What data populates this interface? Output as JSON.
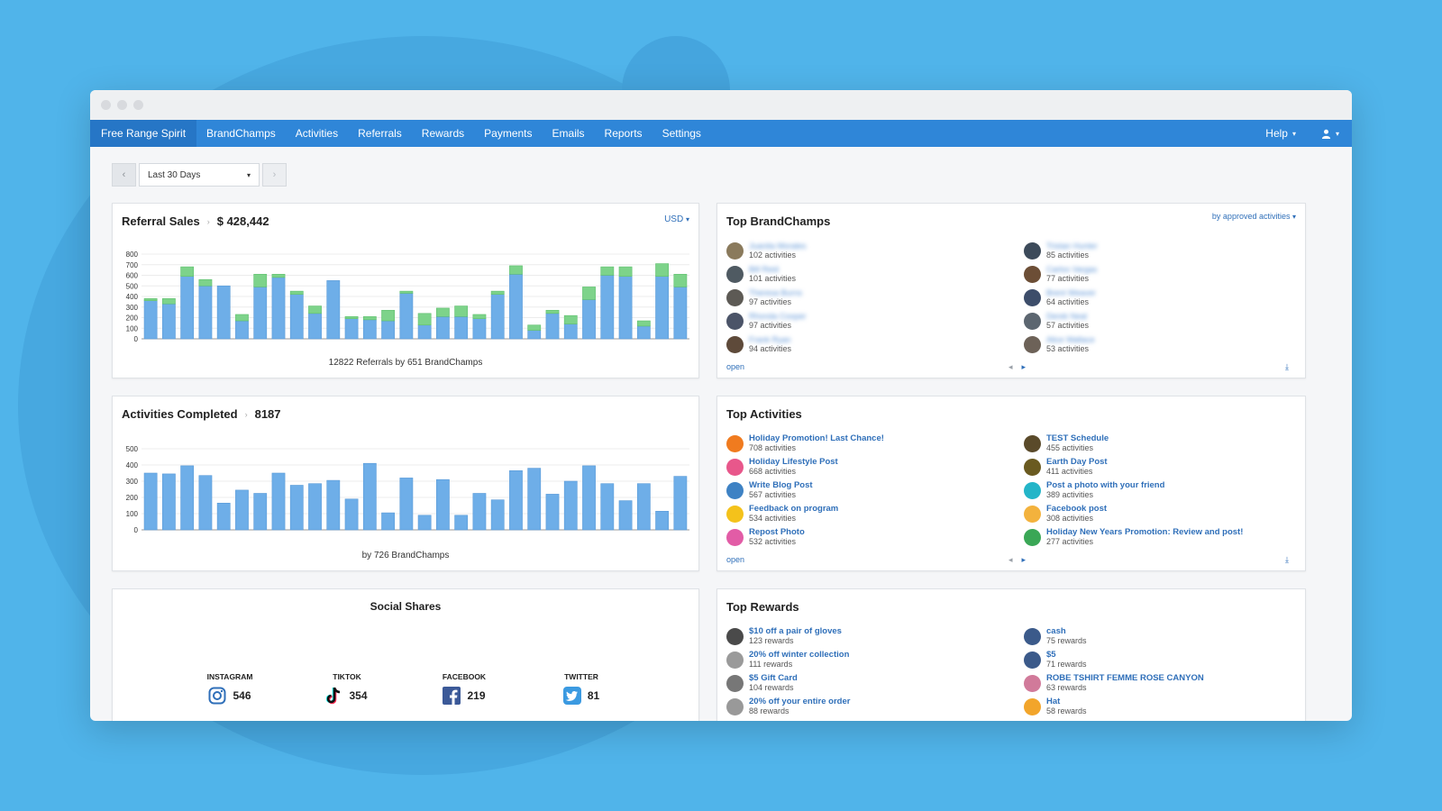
{
  "nav": {
    "brand": "Free Range Spirit",
    "items": [
      "BrandChamps",
      "Activities",
      "Referrals",
      "Rewards",
      "Payments",
      "Emails",
      "Reports",
      "Settings"
    ],
    "help": "Help"
  },
  "date_filter": {
    "selected": "Last 30 Days"
  },
  "referral_sales": {
    "title": "Referral Sales",
    "value": "$ 428,442",
    "currency": "USD",
    "caption": "12822 Referrals by 651 BrandChamps"
  },
  "activities_completed": {
    "title": "Activities Completed",
    "value": "8187",
    "caption": "by 726 BrandChamps"
  },
  "social_shares": {
    "title": "Social Shares",
    "items": [
      {
        "label": "INSTAGRAM",
        "count": "546",
        "icon": "instagram-icon"
      },
      {
        "label": "TIKTOK",
        "count": "354",
        "icon": "tiktok-icon"
      },
      {
        "label": "FACEBOOK",
        "count": "219",
        "icon": "facebook-icon"
      },
      {
        "label": "TWITTER",
        "count": "81",
        "icon": "twitter-icon"
      }
    ]
  },
  "top_brandchamps": {
    "title": "Top BrandChamps",
    "sort": "by approved activities",
    "open": "open",
    "entries": [
      {
        "name": "Juanita Morales",
        "count": "102 activities"
      },
      {
        "name": "Tristan Hunter",
        "count": "85 activities"
      },
      {
        "name": "Bill Reid",
        "count": "101 activities"
      },
      {
        "name": "Carlos Vargas",
        "count": "77 activities"
      },
      {
        "name": "Theresa Burns",
        "count": "97 activities"
      },
      {
        "name": "Brent Weaver",
        "count": "64 activities"
      },
      {
        "name": "Rhonda Cooper",
        "count": "97 activities"
      },
      {
        "name": "Derek Neal",
        "count": "57 activities"
      },
      {
        "name": "Frank Ryan",
        "count": "94 activities"
      },
      {
        "name": "Alice Wallace",
        "count": "53 activities"
      }
    ]
  },
  "top_activities": {
    "title": "Top Activities",
    "open": "open",
    "entries": [
      {
        "name": "Holiday Promotion! Last Chance!",
        "count": "708 activities"
      },
      {
        "name": "TEST Schedule",
        "count": "455 activities"
      },
      {
        "name": "Holiday Lifestyle Post",
        "count": "668 activities"
      },
      {
        "name": "Earth Day Post",
        "count": "411 activities"
      },
      {
        "name": "Write Blog Post",
        "count": "567 activities"
      },
      {
        "name": "Post a photo with your friend",
        "count": "389 activities"
      },
      {
        "name": "Feedback on program",
        "count": "534 activities"
      },
      {
        "name": "Facebook post",
        "count": "308 activities"
      },
      {
        "name": "Repost Photo",
        "count": "532 activities"
      },
      {
        "name": "Holiday New Years Promotion: Review and post!",
        "count": "277 activities"
      }
    ]
  },
  "top_rewards": {
    "title": "Top Rewards",
    "entries": [
      {
        "name": "$10 off a pair of gloves",
        "count": "123 rewards"
      },
      {
        "name": "cash",
        "count": "75 rewards"
      },
      {
        "name": "20% off winter collection",
        "count": "111 rewards"
      },
      {
        "name": "$5",
        "count": "71 rewards"
      },
      {
        "name": "$5 Gift Card",
        "count": "104 rewards"
      },
      {
        "name": "ROBE TSHIRT FEMME ROSE CANYON",
        "count": "63 rewards"
      },
      {
        "name": "20% off your entire order",
        "count": "88 rewards"
      },
      {
        "name": "Hat",
        "count": "58 rewards"
      }
    ]
  },
  "chart_data": [
    {
      "type": "bar",
      "stacked": true,
      "ylim": [
        0,
        800
      ],
      "yticks": [
        0,
        100,
        200,
        300,
        400,
        500,
        600,
        700,
        800
      ],
      "series": [
        {
          "values": [
            360,
            330,
            590,
            500,
            500,
            170,
            490,
            580,
            420,
            240,
            550,
            190,
            180,
            170,
            430,
            130,
            210,
            210,
            190,
            420,
            610,
            80,
            240,
            140,
            370,
            600,
            590,
            120,
            590,
            490
          ]
        },
        {
          "values": [
            20,
            50,
            90,
            60,
            0,
            60,
            120,
            30,
            30,
            70,
            0,
            20,
            30,
            100,
            20,
            110,
            80,
            100,
            40,
            30,
            80,
            50,
            30,
            80,
            120,
            80,
            90,
            50,
            120,
            120
          ]
        }
      ],
      "colors": [
        "#6eaee8",
        "#7dd38a"
      ]
    },
    {
      "type": "bar",
      "ylim": [
        0,
        500
      ],
      "yticks": [
        0,
        100,
        200,
        300,
        400,
        500
      ],
      "series": [
        {
          "values": [
            350,
            345,
            395,
            335,
            165,
            245,
            225,
            350,
            275,
            285,
            305,
            190,
            410,
            105,
            320,
            90,
            310,
            90,
            225,
            185,
            365,
            380,
            220,
            300,
            395,
            285,
            180,
            285,
            115,
            330
          ]
        }
      ],
      "colors": [
        "#6eaee8"
      ]
    }
  ],
  "colors": {
    "nav": "#2f86d8",
    "link": "#2f6fb9",
    "bar_primary": "#6eaee8",
    "bar_secondary": "#7dd38a"
  }
}
